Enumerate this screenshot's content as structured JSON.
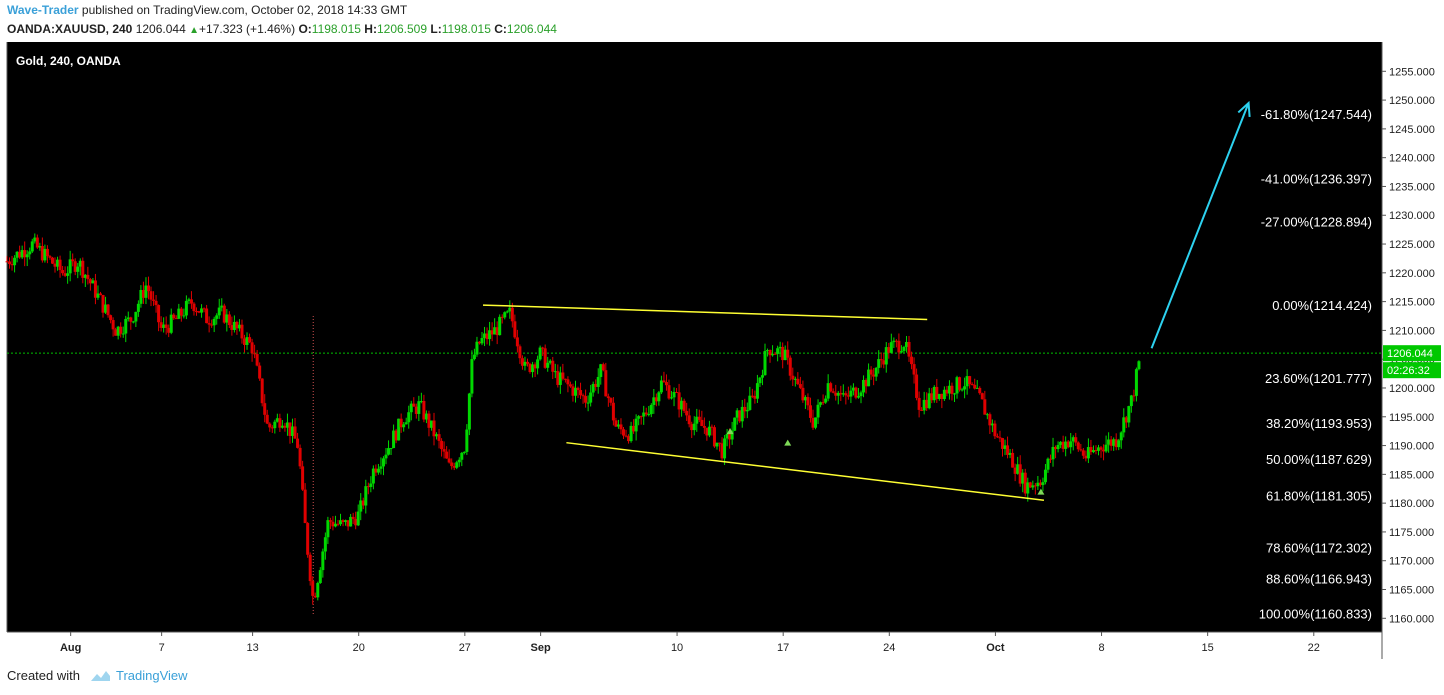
{
  "header": {
    "author": "Wave-Trader",
    "published_text": " published on TradingView.com, October 02, 2018 14:33 GMT",
    "symbol": "OANDA:XAUUSD, 240",
    "last": "1206.044",
    "change": "+17.323 (+1.46%)",
    "open_label": "O:",
    "open": "1198.015",
    "high_label": "H:",
    "high": "1206.509",
    "low_label": "L:",
    "low": "1198.015",
    "close_label": "C:",
    "close": "1206.044"
  },
  "colors": {
    "background": "#000000",
    "up_candle": "#00d800",
    "down_candle": "#e00000",
    "wedge_lines": "#ffff33",
    "target_arrow": "#2dd2f0",
    "price_line": "#00c000",
    "fib_text": "#ffffff"
  },
  "chart_data": {
    "type": "candlestick",
    "title": "Gold, 240, OANDA",
    "xlabel": "",
    "ylabel": "",
    "ylim": [
      1157.5,
      1260
    ],
    "grid": false,
    "y_ticks": [
      "1160.000",
      "1165.000",
      "1170.000",
      "1175.000",
      "1180.000",
      "1185.000",
      "1190.000",
      "1195.000",
      "1200.000",
      "1205.000",
      "1210.000",
      "1215.000",
      "1220.000",
      "1225.000",
      "1230.000",
      "1235.000",
      "1240.000",
      "1245.000",
      "1250.000",
      "1255.000"
    ],
    "x_ticks": [
      {
        "label": "Aug",
        "day": 1,
        "bold": true
      },
      {
        "label": "7",
        "day": 7,
        "bold": false
      },
      {
        "label": "13",
        "day": 13,
        "bold": false
      },
      {
        "label": "20",
        "day": 20,
        "bold": false
      },
      {
        "label": "27",
        "day": 27,
        "bold": false
      },
      {
        "label": "Sep",
        "day": 32,
        "bold": true
      },
      {
        "label": "10",
        "day": 41,
        "bold": false
      },
      {
        "label": "17",
        "day": 48,
        "bold": false
      },
      {
        "label": "24",
        "day": 55,
        "bold": false
      },
      {
        "label": "Oct",
        "day": 62,
        "bold": true
      },
      {
        "label": "8",
        "day": 69,
        "bold": false
      },
      {
        "label": "15",
        "day": 76,
        "bold": false
      },
      {
        "label": "22",
        "day": 83,
        "bold": false
      }
    ],
    "day_range": [
      -3.2,
      87.5
    ],
    "price_path": [
      {
        "day": -3.2,
        "price": 1222
      },
      {
        "day": -1.5,
        "price": 1225
      },
      {
        "day": 0.5,
        "price": 1220
      },
      {
        "day": 1.5,
        "price": 1222
      },
      {
        "day": 3,
        "price": 1215
      },
      {
        "day": 4,
        "price": 1210
      },
      {
        "day": 5,
        "price": 1212
      },
      {
        "day": 6,
        "price": 1218
      },
      {
        "day": 7,
        "price": 1210
      },
      {
        "day": 8,
        "price": 1212
      },
      {
        "day": 9,
        "price": 1215
      },
      {
        "day": 10,
        "price": 1212
      },
      {
        "day": 11,
        "price": 1213
      },
      {
        "day": 12,
        "price": 1210
      },
      {
        "day": 13,
        "price": 1207
      },
      {
        "day": 14,
        "price": 1193
      },
      {
        "day": 15,
        "price": 1195
      },
      {
        "day": 16,
        "price": 1190
      },
      {
        "day": 16.5,
        "price": 1175
      },
      {
        "day": 17,
        "price": 1163
      },
      {
        "day": 17.5,
        "price": 1170
      },
      {
        "day": 18,
        "price": 1177
      },
      {
        "day": 19,
        "price": 1176
      },
      {
        "day": 20,
        "price": 1178
      },
      {
        "day": 21,
        "price": 1186
      },
      {
        "day": 22,
        "price": 1190
      },
      {
        "day": 23,
        "price": 1195
      },
      {
        "day": 24,
        "price": 1197
      },
      {
        "day": 25,
        "price": 1192
      },
      {
        "day": 26,
        "price": 1186
      },
      {
        "day": 27,
        "price": 1190
      },
      {
        "day": 27.5,
        "price": 1205
      },
      {
        "day": 28,
        "price": 1208
      },
      {
        "day": 29,
        "price": 1210
      },
      {
        "day": 30,
        "price": 1213
      },
      {
        "day": 31,
        "price": 1203
      },
      {
        "day": 32,
        "price": 1206
      },
      {
        "day": 33,
        "price": 1202
      },
      {
        "day": 34,
        "price": 1200
      },
      {
        "day": 35,
        "price": 1198
      },
      {
        "day": 36,
        "price": 1203
      },
      {
        "day": 37,
        "price": 1193
      },
      {
        "day": 38,
        "price": 1192
      },
      {
        "day": 39,
        "price": 1196
      },
      {
        "day": 40,
        "price": 1201
      },
      {
        "day": 41,
        "price": 1198
      },
      {
        "day": 42,
        "price": 1194
      },
      {
        "day": 43,
        "price": 1193
      },
      {
        "day": 44,
        "price": 1189
      },
      {
        "day": 45,
        "price": 1195
      },
      {
        "day": 46,
        "price": 1198
      },
      {
        "day": 47,
        "price": 1207
      },
      {
        "day": 48,
        "price": 1206
      },
      {
        "day": 49,
        "price": 1200
      },
      {
        "day": 50,
        "price": 1194
      },
      {
        "day": 51,
        "price": 1201
      },
      {
        "day": 52,
        "price": 1198
      },
      {
        "day": 53,
        "price": 1200
      },
      {
        "day": 54,
        "price": 1203
      },
      {
        "day": 55,
        "price": 1207
      },
      {
        "day": 56,
        "price": 1208
      },
      {
        "day": 57,
        "price": 1197
      },
      {
        "day": 58,
        "price": 1199
      },
      {
        "day": 59,
        "price": 1200
      },
      {
        "day": 60,
        "price": 1201
      },
      {
        "day": 61,
        "price": 1198
      },
      {
        "day": 62,
        "price": 1192
      },
      {
        "day": 63,
        "price": 1188
      },
      {
        "day": 64,
        "price": 1183
      },
      {
        "day": 65,
        "price": 1184
      },
      {
        "day": 66,
        "price": 1190
      },
      {
        "day": 67,
        "price": 1191
      },
      {
        "day": 68,
        "price": 1188
      },
      {
        "day": 69,
        "price": 1190
      },
      {
        "day": 70,
        "price": 1191
      },
      {
        "day": 71,
        "price": 1198
      },
      {
        "day": 71.6,
        "price": 1206
      }
    ],
    "wedge_upper": [
      {
        "day": 28.2,
        "price": 1214.4
      },
      {
        "day": 57.5,
        "price": 1211.9
      }
    ],
    "wedge_lower": [
      {
        "day": 33.7,
        "price": 1190.5
      },
      {
        "day": 65.2,
        "price": 1180.5
      }
    ],
    "target_arrow": [
      {
        "day": 72.3,
        "price": 1206.9
      },
      {
        "day": 78.7,
        "price": 1249.5
      }
    ],
    "event_line_day": 17.0,
    "event_line_range": [
      1160.5,
      1212.5
    ],
    "markers": [
      {
        "day": 44.5,
        "price": 1192.5
      },
      {
        "day": 48.3,
        "price": 1190.5
      },
      {
        "day": 65.0,
        "price": 1182.0
      }
    ],
    "current_price_label": "1206.044",
    "current_price": 1206.044,
    "countdown_label": "02:26:32",
    "fib_levels": [
      {
        "label": "-61.80%(1247.544)",
        "price": 1247.544
      },
      {
        "label": "-41.00%(1236.397)",
        "price": 1236.397
      },
      {
        "label": "-27.00%(1228.894)",
        "price": 1228.894
      },
      {
        "label": "0.00%(1214.424)",
        "price": 1214.424
      },
      {
        "label": "23.60%(1201.777)",
        "price": 1201.777
      },
      {
        "label": "38.20%(1193.953)",
        "price": 1193.953
      },
      {
        "label": "50.00%(1187.629)",
        "price": 1187.629
      },
      {
        "label": "61.80%(1181.305)",
        "price": 1181.305
      },
      {
        "label": "78.60%(1172.302)",
        "price": 1172.302
      },
      {
        "label": "88.60%(1166.943)",
        "price": 1166.943
      },
      {
        "label": "100.00%(1160.833)",
        "price": 1160.833
      }
    ]
  },
  "footer": {
    "created_with": "Created with",
    "brand": "TradingView"
  }
}
